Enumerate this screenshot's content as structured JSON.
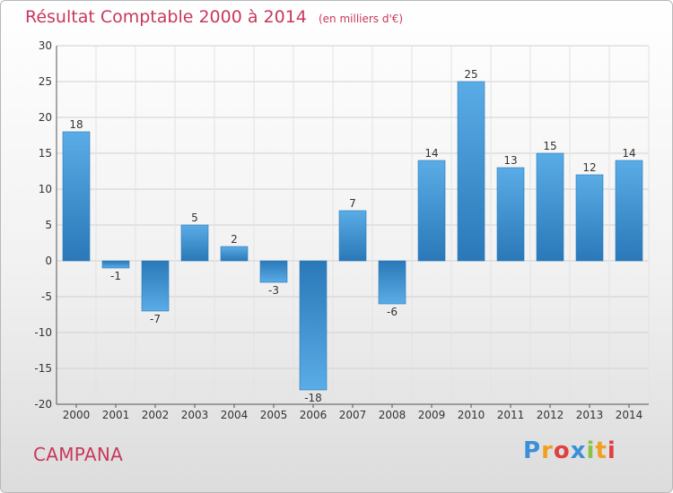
{
  "title": {
    "main": "Résultat Comptable 2000 à 2014",
    "unit": "(en milliers d'€)"
  },
  "commune": "CAMPANA",
  "brand": {
    "letters": [
      "P",
      "r",
      "o",
      "x",
      "i",
      "t",
      "i"
    ],
    "colors": [
      "#3b8fd8",
      "#f0a020",
      "#e04040",
      "#3b8fd8",
      "#8bc34a",
      "#f0a020",
      "#e04040"
    ]
  },
  "colors": {
    "bar_light": "#5aace6",
    "bar_dark": "#2a78b8",
    "grid": "#d0d0d0",
    "title": "#c8385c"
  },
  "chart_data": {
    "type": "bar",
    "title": "Résultat Comptable 2000 à 2014",
    "ylabel": "en milliers d'€",
    "xlabel": "",
    "categories": [
      "2000",
      "2001",
      "2002",
      "2003",
      "2004",
      "2005",
      "2006",
      "2007",
      "2008",
      "2009",
      "2010",
      "2011",
      "2012",
      "2013",
      "2014"
    ],
    "values": [
      18,
      -1,
      -7,
      5,
      2,
      -3,
      -18,
      7,
      -6,
      14,
      25,
      13,
      15,
      12,
      14
    ],
    "ylim": [
      -20,
      30
    ],
    "yticks": [
      30,
      25,
      20,
      15,
      10,
      5,
      0,
      -5,
      -10,
      -15,
      -20
    ],
    "grid": true
  }
}
